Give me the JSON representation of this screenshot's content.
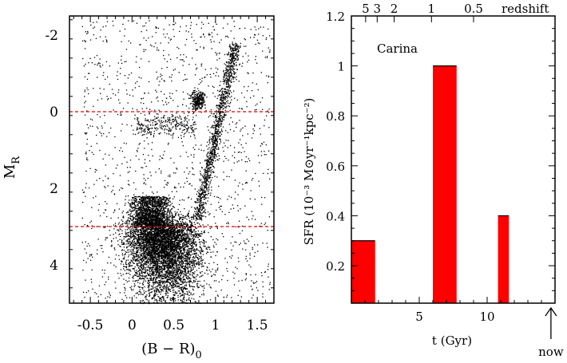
{
  "chart_data": [
    {
      "type": "scatter",
      "xlabel": "(B − R)",
      "xlabel_sub": "0",
      "ylabel": "M",
      "ylabel_sub": "R",
      "xlim": [
        -0.75,
        1.7
      ],
      "ylim": [
        5.0,
        -2.5
      ],
      "y_inverted": true,
      "x_ticks": [
        -0.5,
        0,
        0.5,
        1,
        1.5
      ],
      "x_tick_labels": [
        "-0.5",
        "0",
        "0.5",
        "1",
        "1.5"
      ],
      "y_ticks": [
        -2,
        0,
        2,
        4
      ],
      "y_tick_labels": [
        "-2",
        "0",
        "2",
        "4"
      ],
      "reference_lines": [
        {
          "y": 0.0,
          "color": "#e00000",
          "style": "dashed"
        },
        {
          "y": 3.0,
          "color": "#e00000",
          "style": "dashed"
        }
      ],
      "point_color": "#000000",
      "grid": false,
      "legend": "none"
    },
    {
      "type": "bar",
      "annotation": "Carina",
      "xlabel": "t (Gyr)",
      "ylabel": "SFR  (10⁻³ M⊙yr⁻¹kpc⁻²)",
      "xlim": [
        0,
        15
      ],
      "ylim": [
        0.05,
        1.2
      ],
      "x_ticks": [
        5,
        10
      ],
      "x_tick_labels": [
        "5",
        "10"
      ],
      "y_ticks": [
        0.2,
        0.4,
        0.6,
        0.8,
        1,
        1.2
      ],
      "y_tick_labels": [
        "0.2",
        "0.4",
        "0.6",
        "0.8",
        "1",
        "1.2"
      ],
      "bars": [
        {
          "x_start": 0.0,
          "x_end": 1.75,
          "value": 0.3
        },
        {
          "x_start": 6.0,
          "x_end": 7.75,
          "value": 1.0
        },
        {
          "x_start": 10.8,
          "x_end": 11.6,
          "value": 0.4
        }
      ],
      "bar_color": "#ff0000",
      "top_axis": {
        "label": "redshift",
        "ticks": [
          {
            "label": "5",
            "x": 1.05
          },
          {
            "label": "3",
            "x": 1.9
          },
          {
            "label": "2",
            "x": 3.15
          },
          {
            "label": "1",
            "x": 5.9
          },
          {
            "label": "0.5",
            "x": 9.0
          }
        ]
      },
      "now_marker": {
        "label": "now",
        "x": 14.7
      },
      "grid": false,
      "legend": "none"
    }
  ]
}
